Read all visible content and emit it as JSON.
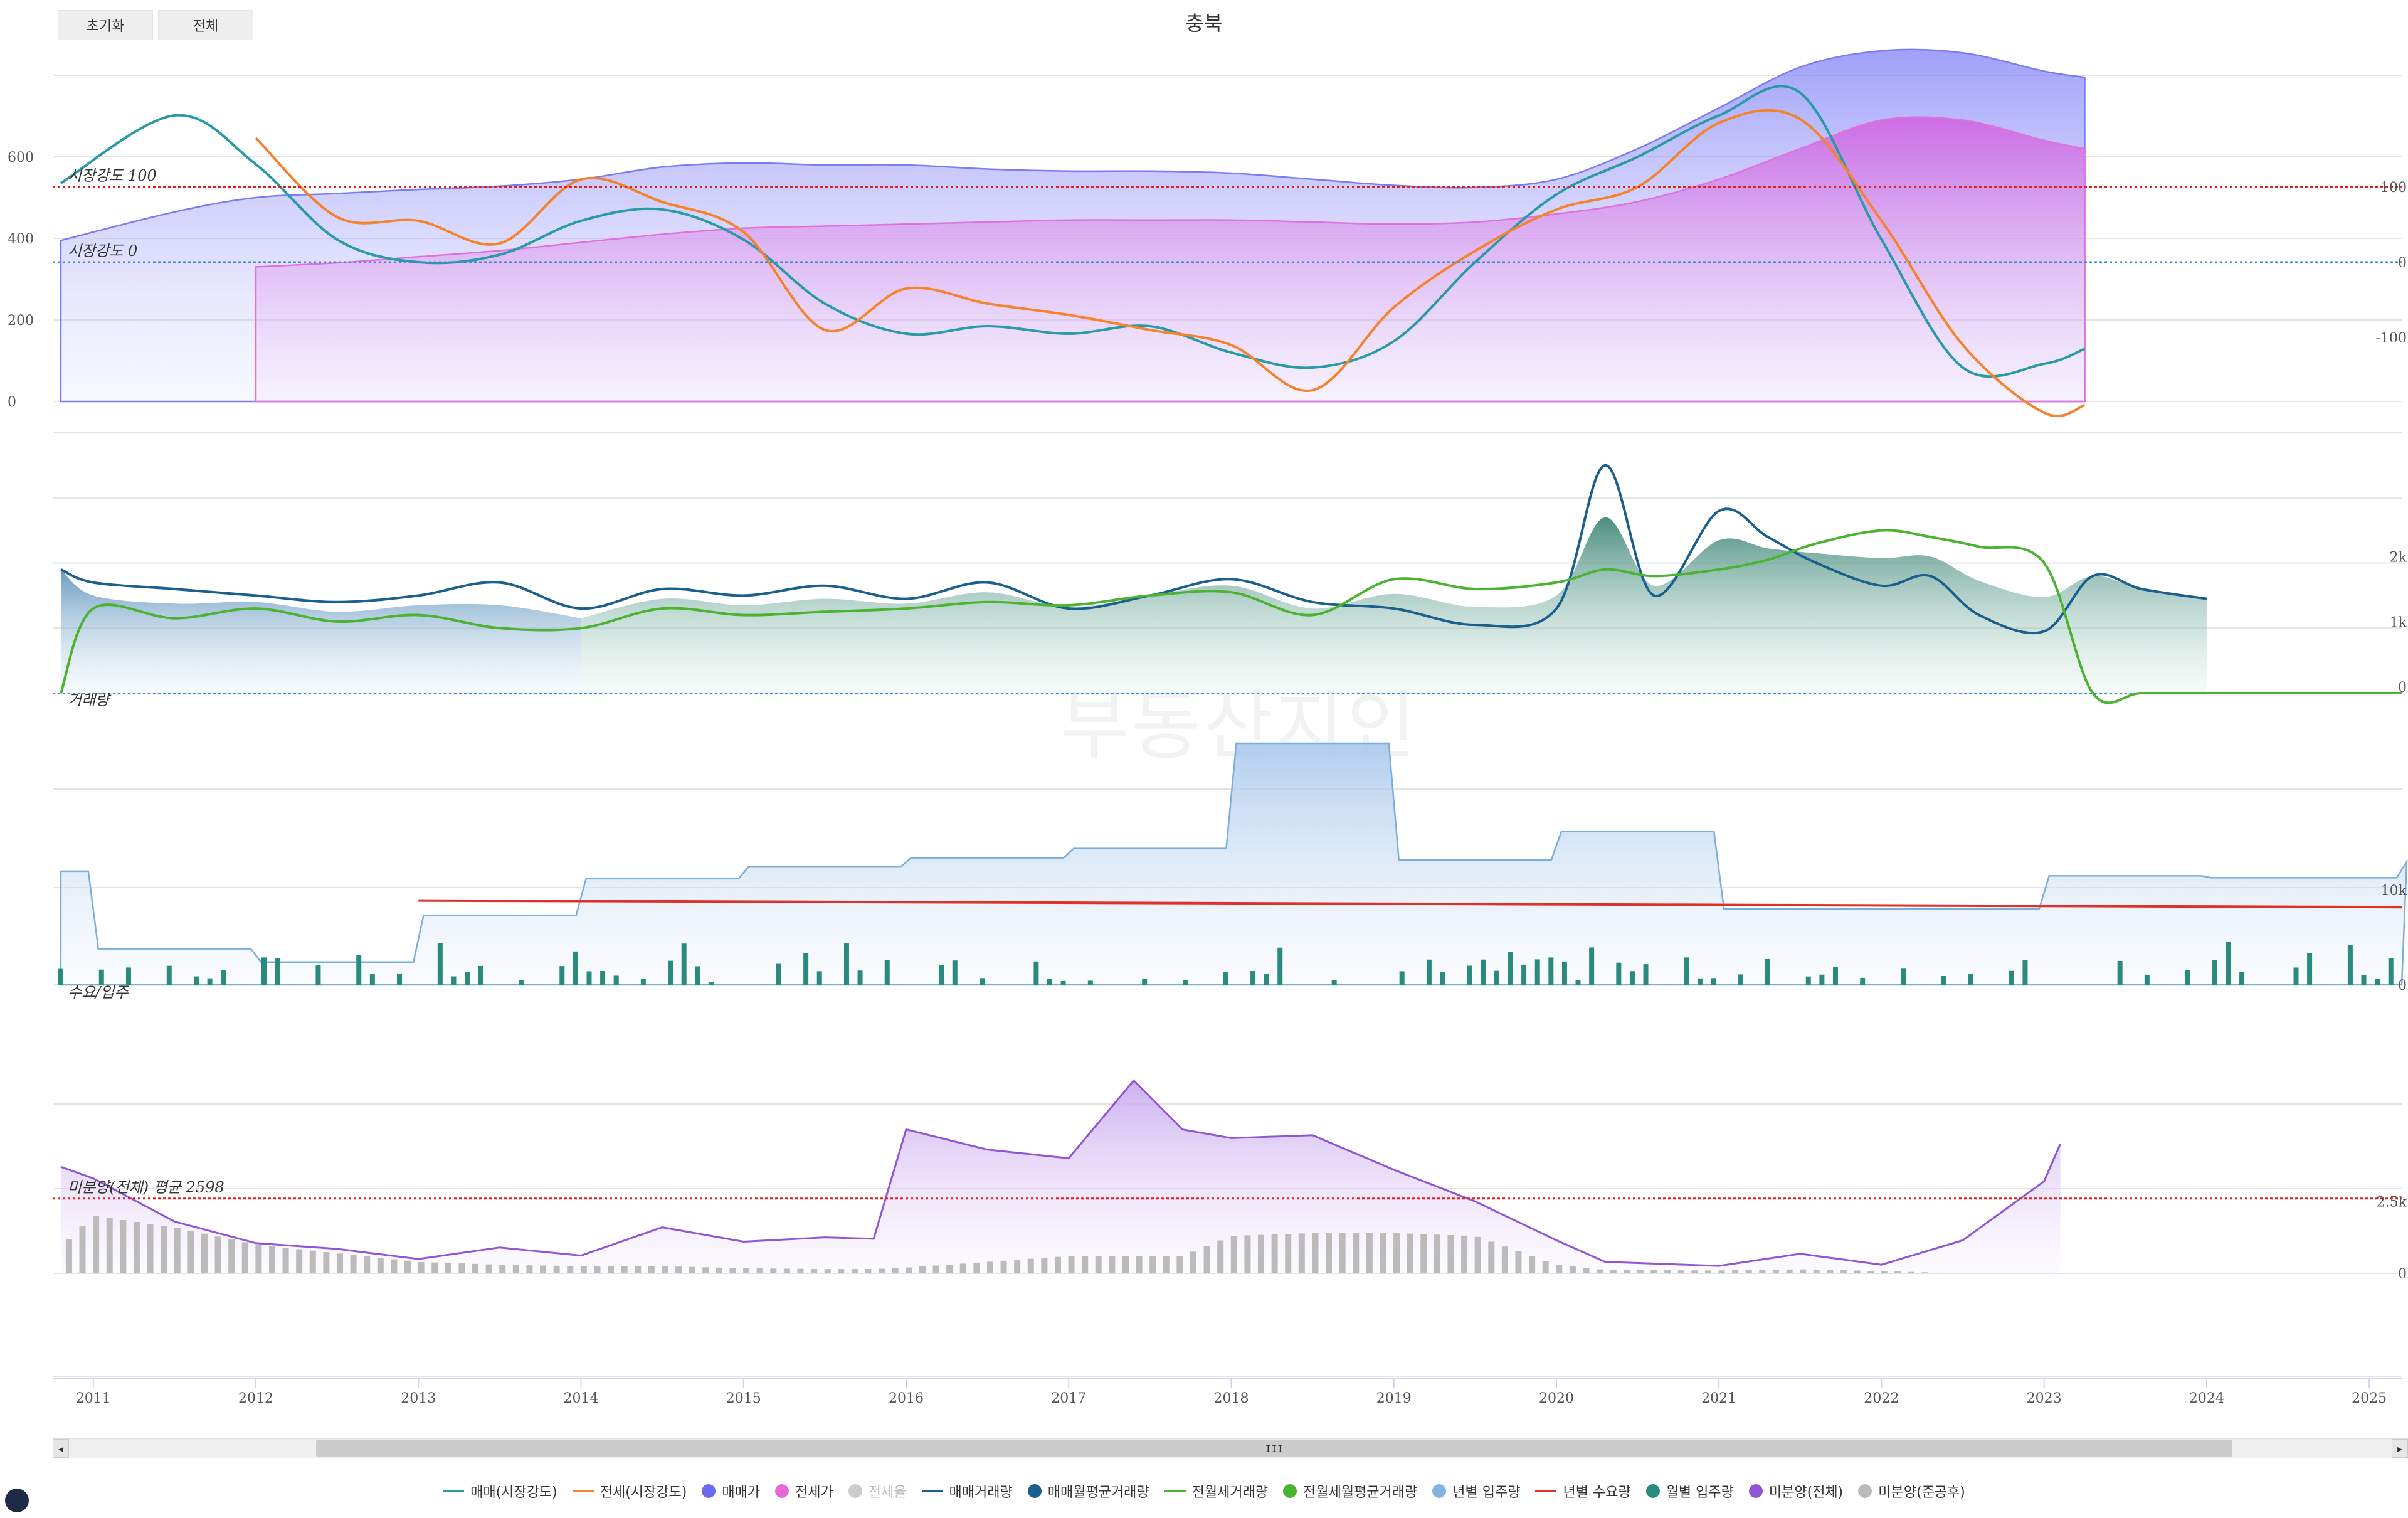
{
  "toolbar": {
    "reset_label": "초기화",
    "all_label": "전체"
  },
  "title": "충북",
  "watermark": "부동산지인",
  "scrollbar": {
    "left": "◂",
    "right": "▸",
    "grip": "III"
  },
  "legend": [
    {
      "label": "매매(시장강도)",
      "color": "#2a9aa6",
      "kind": "line",
      "active": true
    },
    {
      "label": "전세(시장강도)",
      "color": "#f5832b",
      "kind": "line",
      "active": true
    },
    {
      "label": "매매가",
      "color": "#6a6af0",
      "kind": "dot",
      "active": true
    },
    {
      "label": "전세가",
      "color": "#e86ad8",
      "kind": "dot",
      "active": true
    },
    {
      "label": "전세율",
      "color": "#c8c8c8",
      "kind": "dot",
      "active": false
    },
    {
      "label": "매매거래량",
      "color": "#1b5f8f",
      "kind": "line",
      "active": true
    },
    {
      "label": "매매월평균거래량",
      "color": "#1b5f8f",
      "kind": "dot",
      "active": true
    },
    {
      "label": "전월세거래량",
      "color": "#4cb232",
      "kind": "line",
      "active": true
    },
    {
      "label": "전월세월평균거래량",
      "color": "#4cb232",
      "kind": "dot",
      "active": true
    },
    {
      "label": "년별 입주량",
      "color": "#82b4de",
      "kind": "dot",
      "active": true
    },
    {
      "label": "년별 수요량",
      "color": "#e0302a",
      "kind": "line",
      "active": true
    },
    {
      "label": "월별 입주량",
      "color": "#2a8a7e",
      "kind": "dot",
      "active": true
    },
    {
      "label": "미분양(전체)",
      "color": "#9055d6",
      "kind": "dot",
      "active": true
    },
    {
      "label": "미분양(준공후)",
      "color": "#bbbbbb",
      "kind": "dot",
      "active": true
    }
  ],
  "chart_data": [
    {
      "type": "area",
      "name": "panel-market",
      "y_left_ticks": [
        "0",
        "200",
        "400",
        "600"
      ],
      "y_right_ticks": [
        "100",
        "0",
        "-100"
      ],
      "annotations": [
        {
          "text": "시장강도 100",
          "value": 100,
          "color": "#e02020"
        },
        {
          "text": "시장강도 0",
          "value": 0,
          "color": "#3a8ad4"
        }
      ],
      "x": [
        2010.8,
        2011.5,
        2012,
        2012.5,
        2013,
        2013.5,
        2014,
        2014.5,
        2015,
        2015.5,
        2016,
        2016.5,
        2017,
        2017.5,
        2018,
        2018.5,
        2019,
        2019.5,
        2020,
        2020.5,
        2021,
        2021.5,
        2022,
        2022.5,
        2023,
        2023.25
      ],
      "series": [
        {
          "name": "매매가",
          "axis": "left",
          "color": "#7b7bf5",
          "values": [
            395,
            465,
            500,
            510,
            520,
            528,
            545,
            575,
            585,
            580,
            580,
            570,
            565,
            565,
            560,
            545,
            530,
            525,
            545,
            620,
            720,
            820,
            860,
            855,
            810,
            795
          ]
        },
        {
          "name": "전세가",
          "axis": "left",
          "color": "#e070e0",
          "values": [
            null,
            null,
            330,
            340,
            355,
            370,
            390,
            410,
            425,
            430,
            435,
            440,
            445,
            445,
            445,
            440,
            435,
            440,
            460,
            490,
            545,
            620,
            690,
            690,
            640,
            620
          ]
        },
        {
          "name": "매매(시장강도)",
          "axis": "right",
          "color": "#2a9aa6",
          "values": [
            105,
            195,
            130,
            30,
            0,
            10,
            55,
            70,
            30,
            -55,
            -95,
            -85,
            -95,
            -85,
            -120,
            -140,
            -105,
            0,
            90,
            140,
            195,
            225,
            30,
            -140,
            -135,
            -115
          ]
        },
        {
          "name": "전세(시장강도)",
          "axis": "right",
          "color": "#f5832b",
          "values": [
            null,
            null,
            165,
            60,
            55,
            25,
            110,
            80,
            40,
            -90,
            -35,
            -55,
            -70,
            -90,
            -110,
            -170,
            -60,
            15,
            70,
            100,
            185,
            190,
            55,
            -110,
            -200,
            -190
          ]
        }
      ]
    },
    {
      "type": "line",
      "name": "panel-volume",
      "label": "거래량",
      "y_ticks": [
        "0",
        "1k",
        "2k"
      ],
      "x": [
        2010.8,
        2011,
        2011.5,
        2012,
        2012.5,
        2013,
        2013.5,
        2014,
        2014.5,
        2015,
        2015.5,
        2016,
        2016.5,
        2017,
        2017.5,
        2018,
        2018.5,
        2019,
        2019.5,
        2020,
        2020.3,
        2020.6,
        2021,
        2021.3,
        2021.6,
        2022,
        2022.3,
        2022.6,
        2023,
        2023.3,
        2023.6,
        2024,
        2025.2
      ],
      "series": [
        {
          "name": "매매거래량",
          "color": "#1b5f8f",
          "values": [
            1900,
            1700,
            1600,
            1500,
            1400,
            1500,
            1700,
            1300,
            1600,
            1500,
            1650,
            1450,
            1700,
            1300,
            1500,
            1750,
            1400,
            1300,
            1050,
            1300,
            3500,
            1500,
            2800,
            2400,
            2000,
            1650,
            1800,
            1200,
            950,
            1800,
            1600,
            1450,
            null
          ]
        },
        {
          "name": "전월세거래량",
          "color": "#4cb232",
          "values": [
            0,
            1300,
            1150,
            1300,
            1100,
            1200,
            1000,
            1000,
            1300,
            1200,
            1250,
            1300,
            1400,
            1350,
            1500,
            1550,
            1200,
            1750,
            1600,
            1700,
            1900,
            1800,
            1900,
            2050,
            2300,
            2500,
            2400,
            2250,
            2000,
            0,
            0,
            0,
            0
          ]
        }
      ]
    },
    {
      "type": "bar",
      "name": "panel-supply",
      "label": "수요/입주",
      "y_ticks": [
        "0",
        "10k"
      ],
      "yearly_supply": {
        "x": [
          2010.8,
          2011,
          2011.5,
          2012,
          2012.5,
          2013,
          2014,
          2015,
          2016,
          2017,
          2018,
          2019,
          2020,
          2021,
          2022,
          2023,
          2024,
          2025.2
        ],
        "values": [
          12000,
          3800,
          3800,
          2400,
          2400,
          7300,
          11200,
          12500,
          13400,
          14400,
          25500,
          13200,
          16200,
          8000,
          8000,
          11500,
          11300,
          13000
        ]
      },
      "yearly_demand": {
        "x": [
          2013,
          2025.2
        ],
        "values": [
          8900,
          8200
        ]
      },
      "monthly_supply_color": "#2a8a7e"
    },
    {
      "type": "area",
      "name": "panel-unsold",
      "y_ticks": [
        "0",
        "2.5k"
      ],
      "annotations": [
        {
          "text": "미분양(전체) 평균 2598",
          "value": 2598,
          "color": "#e02020"
        }
      ],
      "x": [
        2010.8,
        2011,
        2011.5,
        2012,
        2012.5,
        2013,
        2013.5,
        2014,
        2014.5,
        2015,
        2015.5,
        2015.8,
        2016,
        2016.5,
        2017,
        2017.4,
        2017.7,
        2018,
        2018.5,
        2019,
        2019.5,
        2020,
        2020.3,
        2021,
        2021.5,
        2022,
        2022.5,
        2023,
        2023.1
      ],
      "series": [
        {
          "name": "미분양(전체)",
          "color": "#9055d6",
          "values": [
            3700,
            3300,
            1800,
            1050,
            850,
            500,
            900,
            620,
            1600,
            1100,
            1250,
            1200,
            5000,
            4300,
            4000,
            6700,
            5000,
            4700,
            4800,
            3600,
            2500,
            1150,
            400,
            260,
            680,
            300,
            1150,
            3200,
            4500
          ]
        },
        {
          "name": "미분양(준공후)",
          "color": "#bbbbbb",
          "values": [
            900,
            2000,
            1600,
            1000,
            700,
            400,
            300,
            250,
            250,
            180,
            150,
            150,
            200,
            400,
            600,
            600,
            600,
            1300,
            1400,
            1400,
            1300,
            300,
            120,
            100,
            140,
            80,
            0,
            null,
            null
          ]
        }
      ]
    }
  ],
  "x_axis": {
    "ticks": [
      "2011",
      "2012",
      "2013",
      "2014",
      "2015",
      "2016",
      "2017",
      "2018",
      "2019",
      "2020",
      "2021",
      "2022",
      "2023",
      "2024",
      "2025"
    ]
  }
}
